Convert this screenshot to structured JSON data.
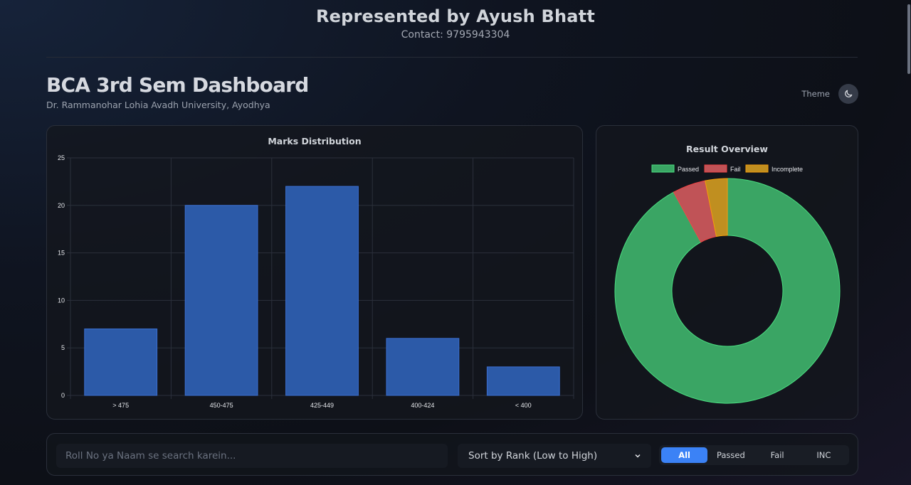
{
  "header": {
    "title": "Represented by Ayush Bhatt",
    "contact": "Contact: 9795943304"
  },
  "dashboard": {
    "title": "BCA 3rd Sem Dashboard",
    "subtitle": "Dr. Rammanohar Lohia Avadh University, Ayodhya",
    "theme_label": "Theme",
    "theme_icon": "moon-icon"
  },
  "colors": {
    "bar": "#2c5aa8",
    "bar_border": "#3b6fd1",
    "passed": "#3aa564",
    "passed_border": "#4ade80",
    "fail": "#c05357",
    "fail_border": "#ef4444",
    "incomplete": "#c08f20",
    "incomplete_border": "#f59e0b",
    "accent": "#3b82f6"
  },
  "chart_data": [
    {
      "type": "bar",
      "title": "Marks Distribution",
      "categories": [
        "> 475",
        "450-475",
        "425-449",
        "400-424",
        "< 400"
      ],
      "values": [
        7,
        20,
        22,
        6,
        3
      ],
      "xlabel": "",
      "ylabel": "",
      "ylim": [
        0,
        25
      ],
      "yticks": [
        0,
        5,
        10,
        15,
        20,
        25
      ],
      "grid": true,
      "legend": false
    },
    {
      "type": "pie",
      "subtype": "doughnut",
      "title": "Result Overview",
      "categories": [
        "Passed",
        "Fail",
        "Incomplete"
      ],
      "values": [
        58,
        3,
        2
      ],
      "legend_position": "top"
    }
  ],
  "filters": {
    "search_placeholder": "Roll No ya Naam se search karein...",
    "search_value": "",
    "sort_selected": "Sort by Rank (Low to High)",
    "tabs": [
      {
        "label": "All",
        "active": true
      },
      {
        "label": "Passed",
        "active": false
      },
      {
        "label": "Fail",
        "active": false
      },
      {
        "label": "INC",
        "active": false
      }
    ]
  }
}
